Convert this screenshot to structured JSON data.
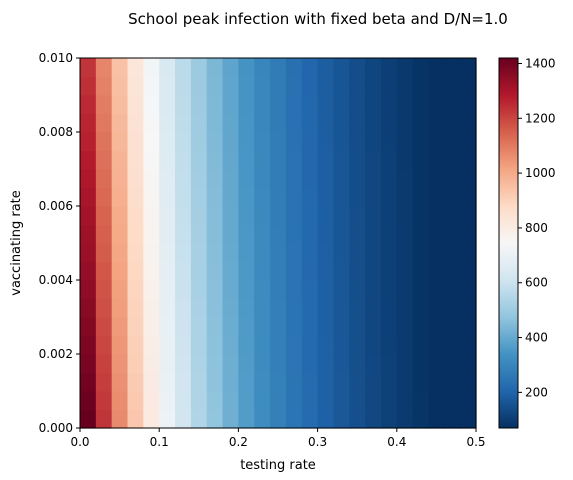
{
  "chart_data": {
    "type": "heatmap",
    "title": "School peak infection with fixed beta and D/N=1.0",
    "xlabel": "testing rate",
    "ylabel": "vaccinating rate",
    "xlim": [
      0.0,
      0.5
    ],
    "ylim": [
      0.0,
      0.01
    ],
    "x_ticks": [
      "0.0",
      "0.1",
      "0.2",
      "0.3",
      "0.4",
      "0.5"
    ],
    "y_ticks": [
      "0.000",
      "0.002",
      "0.004",
      "0.006",
      "0.008",
      "0.010"
    ],
    "n_x": 25,
    "n_y": 20,
    "colormap": "RdBu_r",
    "colorbar": {
      "range": [
        70,
        1420
      ],
      "ticks": [
        "200",
        "400",
        "600",
        "800",
        "1000",
        "1200",
        "1400"
      ],
      "placement": "right"
    },
    "grid": false,
    "peak_at_origin": 1420,
    "trend": "values decrease with increasing testing rate and, more weakly, with increasing vaccinating rate"
  }
}
